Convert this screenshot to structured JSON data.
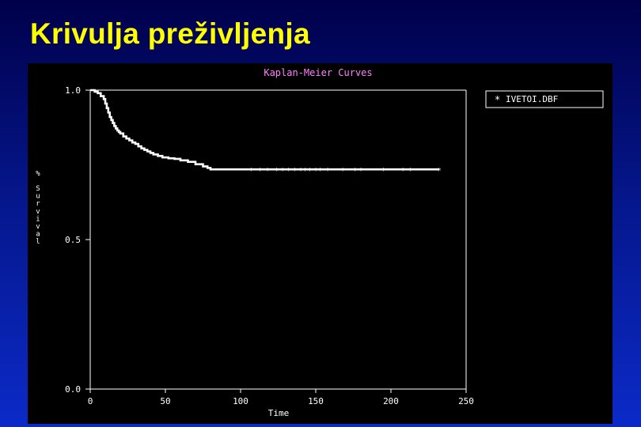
{
  "slide": {
    "title": "Krivulja preživljenja"
  },
  "chart_data": {
    "type": "line",
    "title": "Kaplan-Meier Curves",
    "xlabel": "Time",
    "ylabel": "% Survival",
    "xlim": [
      0,
      250
    ],
    "ylim": [
      0.0,
      1.0
    ],
    "x_ticks": [
      "0",
      "50",
      "100",
      "150",
      "200",
      "250"
    ],
    "y_ticks": [
      "0.0",
      "0.5",
      "1.0"
    ],
    "legend_position": "top-right",
    "grid": false,
    "colors": {
      "background": "#000000",
      "curve": "#ffffff",
      "title": "#ff80ff",
      "axes": "#ffffff"
    },
    "series": [
      {
        "name": "IVETOI.DBF",
        "marker": "*",
        "x": [
          0,
          3,
          5,
          7,
          9,
          10,
          11,
          12,
          13,
          14,
          15,
          16,
          17,
          18,
          19,
          20,
          22,
          24,
          26,
          28,
          30,
          32,
          34,
          36,
          38,
          40,
          42,
          45,
          48,
          52,
          56,
          60,
          65,
          70,
          75,
          78,
          80,
          90,
          100,
          110,
          120,
          130,
          140,
          150,
          160,
          170,
          180,
          190,
          200,
          210,
          220,
          232
        ],
        "y": [
          1.0,
          0.995,
          0.99,
          0.98,
          0.97,
          0.955,
          0.94,
          0.925,
          0.91,
          0.9,
          0.89,
          0.88,
          0.872,
          0.865,
          0.86,
          0.855,
          0.845,
          0.838,
          0.832,
          0.825,
          0.82,
          0.812,
          0.805,
          0.8,
          0.795,
          0.79,
          0.785,
          0.78,
          0.775,
          0.772,
          0.77,
          0.765,
          0.76,
          0.752,
          0.745,
          0.74,
          0.735,
          0.735,
          0.735,
          0.735,
          0.735,
          0.735,
          0.735,
          0.735,
          0.735,
          0.735,
          0.735,
          0.735,
          0.735,
          0.735,
          0.735,
          0.735
        ],
        "censored_x": [
          107,
          113,
          118,
          124,
          128,
          132,
          136,
          140,
          143,
          146,
          150,
          153,
          158,
          168,
          176,
          180,
          195,
          208,
          213,
          232
        ]
      }
    ]
  }
}
